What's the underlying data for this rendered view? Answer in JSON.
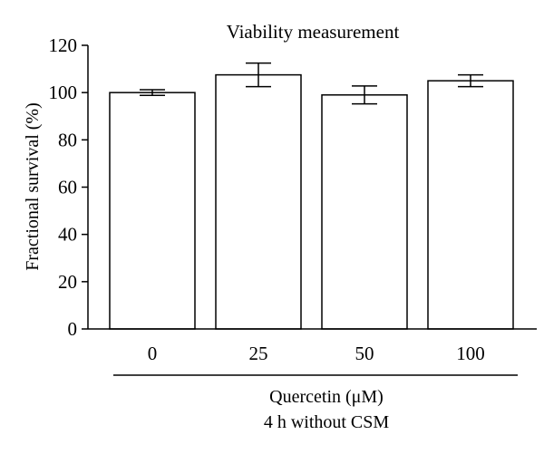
{
  "chart_data": {
    "type": "bar",
    "title": "Viability measurement",
    "ylabel": "Fractional survival (%)",
    "xlabel_lines": [
      "Quercetin (μM)",
      "4 h without CSM"
    ],
    "categories": [
      "0",
      "25",
      "50",
      "100"
    ],
    "values": [
      100,
      107.5,
      99,
      105
    ],
    "errors": [
      1.2,
      5,
      3.8,
      2.5
    ],
    "ylim": [
      0,
      120
    ],
    "yticks": [
      0,
      20,
      40,
      60,
      80,
      100,
      120
    ],
    "grid": false,
    "legend": "none",
    "colors": {
      "bar_fill": "#ffffff",
      "bar_stroke": "#000000",
      "axis": "#000000"
    }
  }
}
